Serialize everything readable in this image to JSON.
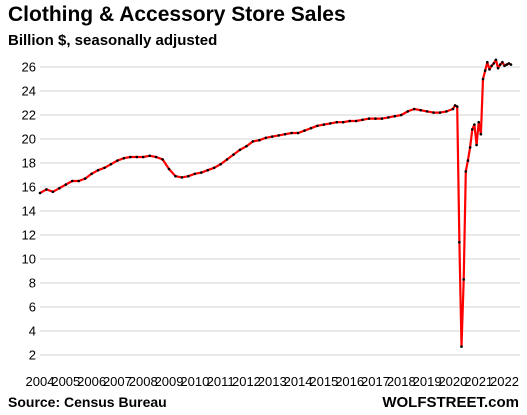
{
  "title": "Clothing & Accessory Store Sales",
  "subtitle": "Billion $, seasonally adjusted",
  "source": "Source: Census Bureau",
  "brand": "WOLFSTREET.com",
  "chart_data": {
    "type": "line",
    "title": "Clothing & Accessory Store Sales",
    "subtitle": "Billion $, seasonally adjusted",
    "ylabel": "",
    "xlabel": "",
    "ylim": [
      2,
      27
    ],
    "xlim": [
      2004.0,
      2022.6
    ],
    "y_ticks": [
      2,
      4,
      6,
      8,
      10,
      12,
      14,
      16,
      18,
      20,
      22,
      24,
      26
    ],
    "x_ticks": [
      "2004",
      "2005",
      "2006",
      "2007",
      "2008",
      "2009",
      "2010",
      "2011",
      "2012",
      "2013",
      "2014",
      "2015",
      "2016",
      "2017",
      "2018",
      "2019",
      "2020",
      "2021",
      "2022"
    ],
    "grid": "horizontal",
    "line_color": "#ff0000",
    "marker_color": "#000000",
    "series": [
      {
        "x": [
          2004.0,
          2004.25,
          2004.5,
          2004.75,
          2005.0,
          2005.25,
          2005.5,
          2005.75,
          2006.0,
          2006.25,
          2006.5,
          2006.75,
          2007.0,
          2007.25,
          2007.5,
          2007.75,
          2008.0,
          2008.25,
          2008.5,
          2008.75,
          2009.0,
          2009.25,
          2009.5,
          2009.75,
          2010.0,
          2010.25,
          2010.5,
          2010.75,
          2011.0,
          2011.25,
          2011.5,
          2011.75,
          2012.0,
          2012.25,
          2012.5,
          2012.75,
          2013.0,
          2013.25,
          2013.5,
          2013.75,
          2014.0,
          2014.25,
          2014.5,
          2014.75,
          2015.0,
          2015.25,
          2015.5,
          2015.75,
          2016.0,
          2016.25,
          2016.5,
          2016.75,
          2017.0,
          2017.25,
          2017.5,
          2017.75,
          2018.0,
          2018.25,
          2018.5,
          2018.75,
          2019.0,
          2019.25,
          2019.5,
          2019.75,
          2020.0,
          2020.083,
          2020.167,
          2020.25,
          2020.333,
          2020.417,
          2020.5,
          2020.583,
          2020.667,
          2020.75,
          2020.833,
          2020.917,
          2021.0,
          2021.083,
          2021.167,
          2021.25,
          2021.333,
          2021.417,
          2021.5,
          2021.583,
          2021.667,
          2021.75,
          2021.833,
          2021.917,
          2022.0,
          2022.083,
          2022.167,
          2022.25
        ],
        "values": [
          15.5,
          15.8,
          15.6,
          15.9,
          16.2,
          16.5,
          16.5,
          16.7,
          17.1,
          17.4,
          17.6,
          17.9,
          18.2,
          18.4,
          18.5,
          18.5,
          18.5,
          18.6,
          18.5,
          18.3,
          17.5,
          16.9,
          16.8,
          16.9,
          17.1,
          17.2,
          17.4,
          17.6,
          17.9,
          18.3,
          18.7,
          19.1,
          19.4,
          19.8,
          19.9,
          20.1,
          20.2,
          20.3,
          20.4,
          20.5,
          20.5,
          20.7,
          20.9,
          21.1,
          21.2,
          21.3,
          21.4,
          21.4,
          21.5,
          21.5,
          21.6,
          21.7,
          21.7,
          21.7,
          21.8,
          21.9,
          22.0,
          22.3,
          22.5,
          22.4,
          22.3,
          22.2,
          22.2,
          22.3,
          22.5,
          22.8,
          22.7,
          11.4,
          2.7,
          8.3,
          17.3,
          18.2,
          19.3,
          20.8,
          21.2,
          19.5,
          21.4,
          20.4,
          25.0,
          25.7,
          26.4,
          25.8,
          26.1,
          26.3,
          26.6,
          25.9,
          26.2,
          26.4,
          26.1,
          26.2,
          26.3,
          26.2
        ]
      }
    ]
  }
}
